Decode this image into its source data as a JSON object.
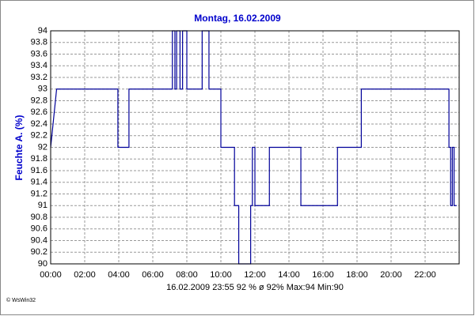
{
  "chart_data": {
    "type": "line",
    "title": "Montag, 16.02.2009",
    "y_label": "Feuchte A. (%)",
    "footer": "16.02.2009  23:55   92 %   ø 92%  Max:94  Min:90",
    "credit": "© WsWin32",
    "x": [
      0,
      0.35,
      3.95,
      3.95,
      4.6,
      4.6,
      7.15,
      7.15,
      7.3,
      7.3,
      7.4,
      7.4,
      7.6,
      7.6,
      7.75,
      7.75,
      8.0,
      8.0,
      8.9,
      8.9,
      9.3,
      9.3,
      10.0,
      10.0,
      10.8,
      10.8,
      11.05,
      11.05,
      11.75,
      11.75,
      11.85,
      11.85,
      12.0,
      12.0,
      12.85,
      12.85,
      14.7,
      14.7,
      16.85,
      16.85,
      18.25,
      18.25,
      23.4,
      23.4,
      23.5,
      23.5,
      23.6,
      23.6,
      23.7,
      23.7,
      23.85
    ],
    "series": [
      {
        "name": "Feuchte A.",
        "color": "#000099",
        "values": [
          92,
          93,
          93,
          92,
          92,
          93,
          93,
          94,
          94,
          93,
          93,
          94,
          94,
          93,
          93,
          94,
          94,
          93,
          93,
          94,
          94,
          93,
          93,
          92,
          92,
          91,
          91,
          90,
          90,
          91,
          91,
          92,
          92,
          91,
          91,
          92,
          92,
          91,
          91,
          92,
          92,
          93,
          93,
          92,
          92,
          91,
          91,
          92,
          92,
          91,
          91
        ]
      }
    ],
    "xlim": [
      0,
      24
    ],
    "xticks": [
      {
        "value": 0,
        "label": "00:00"
      },
      {
        "value": 2,
        "label": "02:00"
      },
      {
        "value": 4,
        "label": "04:00"
      },
      {
        "value": 6,
        "label": "06:00"
      },
      {
        "value": 8,
        "label": "08:00"
      },
      {
        "value": 10,
        "label": "10:00"
      },
      {
        "value": 12,
        "label": "12:00"
      },
      {
        "value": 14,
        "label": "14:00"
      },
      {
        "value": 16,
        "label": "16:00"
      },
      {
        "value": 18,
        "label": "18:00"
      },
      {
        "value": 20,
        "label": "20:00"
      },
      {
        "value": 22,
        "label": "22:00"
      }
    ],
    "ylim": [
      90,
      94
    ],
    "yticks": [
      90,
      90.2,
      90.4,
      90.6,
      90.8,
      91,
      91.2,
      91.4,
      91.6,
      91.8,
      92,
      92.2,
      92.4,
      92.6,
      92.8,
      93,
      93.2,
      93.4,
      93.6,
      93.8,
      94
    ],
    "grid": true
  }
}
